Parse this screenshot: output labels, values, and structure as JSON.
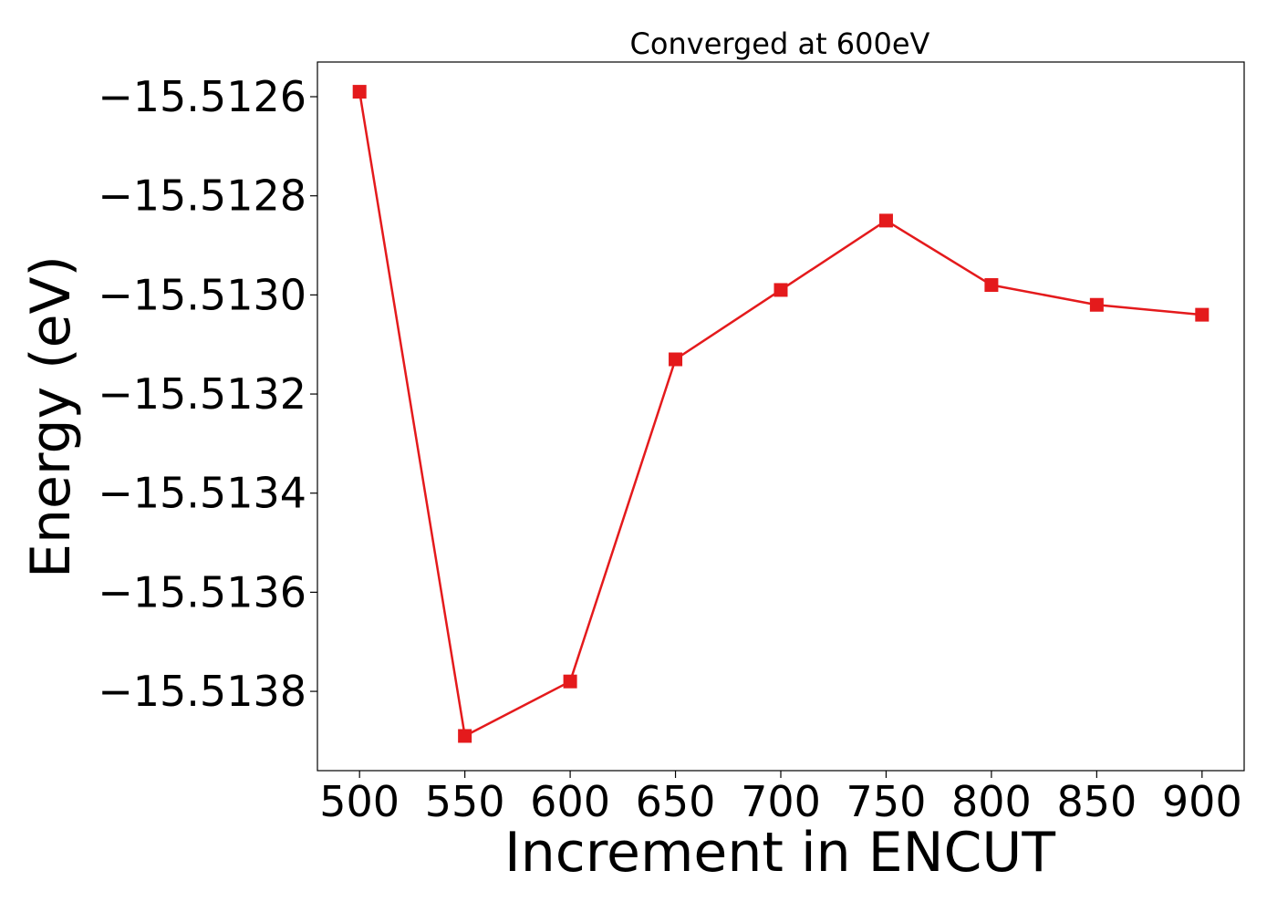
{
  "chart_data": {
    "type": "line",
    "title": "Converged at 600eV",
    "xlabel": "Increment in ENCUT",
    "ylabel": "Energy (eV)",
    "x": [
      500,
      550,
      600,
      650,
      700,
      750,
      800,
      850,
      900
    ],
    "series": [
      {
        "values": [
          -15.51259,
          -15.51389,
          -15.51378,
          -15.51313,
          -15.51299,
          -15.51285,
          -15.51298,
          -15.51302,
          -15.51304
        ],
        "color": "#e41a1c",
        "marker": "square"
      }
    ],
    "xlim": [
      480,
      920
    ],
    "ylim": [
      -15.51396,
      -15.51253
    ],
    "xticks": [
      500,
      550,
      600,
      650,
      700,
      750,
      800,
      850,
      900
    ],
    "xtick_labels": [
      "500",
      "550",
      "600",
      "650",
      "700",
      "750",
      "800",
      "850",
      "900"
    ],
    "yticks": [
      -15.5126,
      -15.5128,
      -15.513,
      -15.5132,
      -15.5134,
      -15.5136,
      -15.5138
    ],
    "ytick_labels": [
      "−15.5126",
      "−15.5128",
      "−15.5130",
      "−15.5132",
      "−15.5134",
      "−15.5136",
      "−15.5138"
    ],
    "grid": false,
    "legend": false
  }
}
